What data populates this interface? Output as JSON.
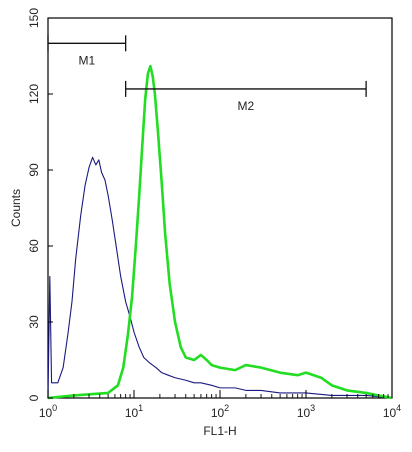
{
  "chart_data": {
    "type": "line",
    "title": "",
    "xlabel": "FL1-H",
    "ylabel": "Counts",
    "xscale": "log",
    "xlim": [
      1,
      10000
    ],
    "ylim": [
      0,
      150
    ],
    "grid": false,
    "x_ticks": [
      {
        "value": 1,
        "base": "10",
        "exp": "0"
      },
      {
        "value": 10,
        "base": "10",
        "exp": "1"
      },
      {
        "value": 100,
        "base": "10",
        "exp": "2"
      },
      {
        "value": 1000,
        "base": "10",
        "exp": "3"
      },
      {
        "value": 10000,
        "base": "10",
        "exp": "4"
      }
    ],
    "y_ticks": [
      0,
      30,
      60,
      90,
      120,
      150
    ],
    "series": [
      {
        "color": "#1a1a80",
        "points": [
          [
            1.0,
            0
          ],
          [
            1.05,
            48
          ],
          [
            1.1,
            6
          ],
          [
            1.3,
            6
          ],
          [
            1.5,
            12
          ],
          [
            1.7,
            25
          ],
          [
            1.9,
            38
          ],
          [
            2.1,
            55
          ],
          [
            2.4,
            72
          ],
          [
            2.7,
            84
          ],
          [
            3.0,
            91
          ],
          [
            3.3,
            95
          ],
          [
            3.6,
            92
          ],
          [
            3.9,
            94
          ],
          [
            4.2,
            89
          ],
          [
            4.6,
            86
          ],
          [
            5.0,
            80
          ],
          [
            5.6,
            70
          ],
          [
            6.2,
            60
          ],
          [
            7.0,
            48
          ],
          [
            8.0,
            38
          ],
          [
            9.0,
            32
          ],
          [
            10,
            26
          ],
          [
            11.5,
            20
          ],
          [
            13,
            16
          ],
          [
            15,
            14
          ],
          [
            18,
            12
          ],
          [
            21,
            10
          ],
          [
            25,
            9
          ],
          [
            30,
            8
          ],
          [
            40,
            7
          ],
          [
            50,
            6
          ],
          [
            60,
            6
          ],
          [
            80,
            5
          ],
          [
            100,
            4
          ],
          [
            150,
            4
          ],
          [
            200,
            3
          ],
          [
            300,
            3
          ],
          [
            500,
            2
          ],
          [
            1000,
            2
          ],
          [
            2000,
            1
          ],
          [
            5000,
            1
          ],
          [
            10000,
            0
          ]
        ]
      },
      {
        "color": "#22dd22",
        "points": [
          [
            1.0,
            0
          ],
          [
            2.0,
            1
          ],
          [
            5.0,
            2
          ],
          [
            6.5,
            5
          ],
          [
            7.5,
            12
          ],
          [
            8.5,
            25
          ],
          [
            9.5,
            40
          ],
          [
            10.5,
            60
          ],
          [
            11.5,
            80
          ],
          [
            12.5,
            100
          ],
          [
            13.5,
            118
          ],
          [
            14.5,
            128
          ],
          [
            15.5,
            131
          ],
          [
            16.5,
            127
          ],
          [
            17.5,
            120
          ],
          [
            19,
            105
          ],
          [
            21,
            85
          ],
          [
            23,
            65
          ],
          [
            26,
            45
          ],
          [
            30,
            30
          ],
          [
            35,
            20
          ],
          [
            40,
            16
          ],
          [
            50,
            15
          ],
          [
            60,
            17
          ],
          [
            70,
            15
          ],
          [
            80,
            13
          ],
          [
            100,
            12
          ],
          [
            150,
            11
          ],
          [
            200,
            13
          ],
          [
            300,
            12
          ],
          [
            500,
            10
          ],
          [
            800,
            9
          ],
          [
            1000,
            10
          ],
          [
            1500,
            8
          ],
          [
            2000,
            5
          ],
          [
            3000,
            3
          ],
          [
            5000,
            2
          ],
          [
            7000,
            1
          ],
          [
            10000,
            0
          ]
        ]
      }
    ],
    "gates": [
      {
        "label": "M1",
        "x_start": 1,
        "x_end": 8,
        "y": 140
      },
      {
        "label": "M2",
        "x_start": 8,
        "x_end": 5000,
        "y": 122
      }
    ]
  }
}
